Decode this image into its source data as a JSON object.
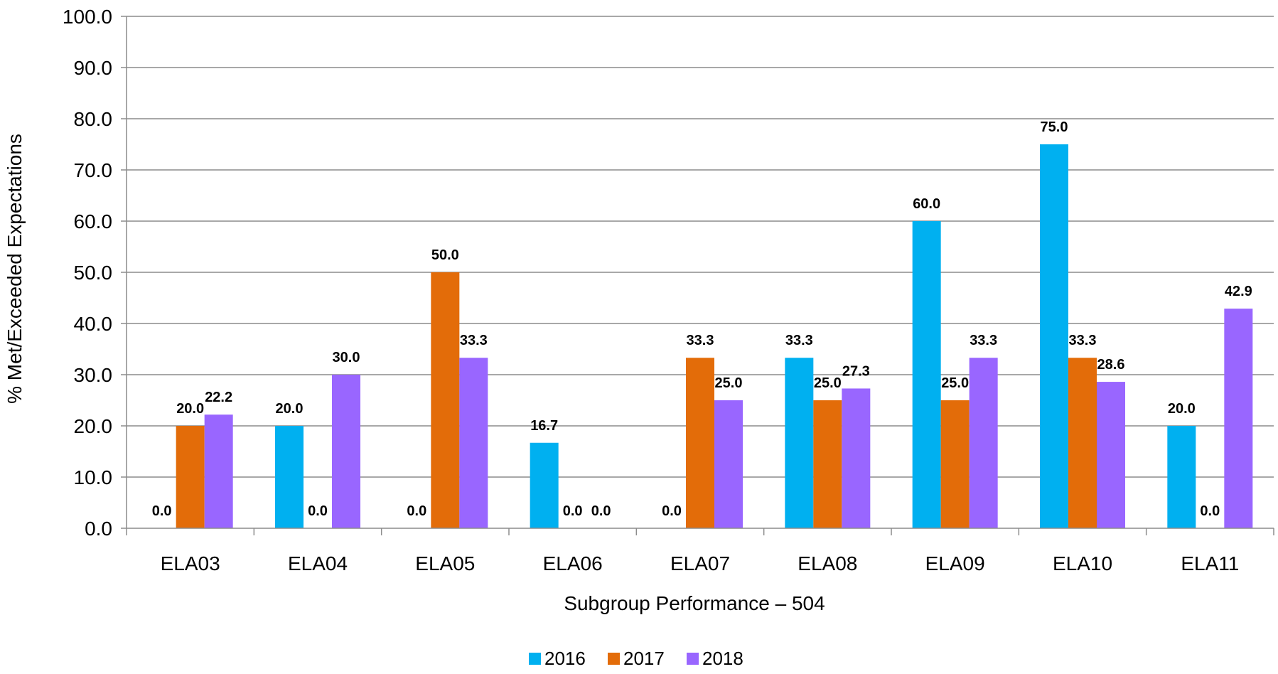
{
  "chart_data": {
    "type": "bar",
    "title": "",
    "xlabel": "Subgroup Performance – 504",
    "ylabel": "% Met/Exceeded Expectations",
    "ylim": [
      0,
      100
    ],
    "yticks": [
      "0.0",
      "10.0",
      "20.0",
      "30.0",
      "40.0",
      "50.0",
      "60.0",
      "70.0",
      "80.0",
      "90.0",
      "100.0"
    ],
    "grid": true,
    "legend_position": "bottom",
    "categories": [
      "ELA03",
      "ELA04",
      "ELA05",
      "ELA06",
      "ELA07",
      "ELA08",
      "ELA09",
      "ELA10",
      "ELA11"
    ],
    "series": [
      {
        "name": "2016",
        "color": "#00B0F0",
        "values": [
          0.0,
          20.0,
          0.0,
          16.7,
          0.0,
          33.3,
          60.0,
          75.0,
          20.0
        ]
      },
      {
        "name": "2017",
        "color": "#E36C09",
        "values": [
          20.0,
          0.0,
          50.0,
          0.0,
          33.3,
          25.0,
          25.0,
          33.3,
          0.0
        ]
      },
      {
        "name": "2018",
        "color": "#9966FF",
        "values": [
          22.2,
          30.0,
          33.3,
          0.0,
          25.0,
          27.3,
          33.3,
          28.6,
          42.9
        ]
      }
    ]
  }
}
